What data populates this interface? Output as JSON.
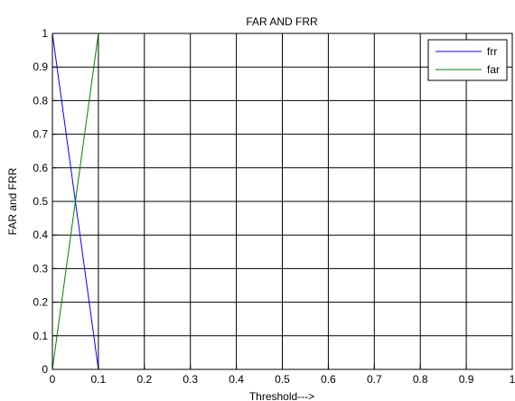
{
  "chart_data": {
    "type": "line",
    "title": "FAR AND FRR",
    "xlabel": "Threshold--->",
    "ylabel": "FAR and FRR",
    "xlim": [
      0,
      1
    ],
    "ylim": [
      0,
      1
    ],
    "grid": true,
    "legend_position": "top-right",
    "x_ticks": [
      "0",
      "0.1",
      "0.2",
      "0.3",
      "0.4",
      "0.5",
      "0.6",
      "0.7",
      "0.8",
      "0.9",
      "1"
    ],
    "y_ticks": [
      "0",
      "0.1",
      "0.2",
      "0.3",
      "0.4",
      "0.5",
      "0.6",
      "0.7",
      "0.8",
      "0.9",
      "1"
    ],
    "series": [
      {
        "name": "frr",
        "color": "#0000ff",
        "x": [
          0,
          0.1,
          1
        ],
        "y": [
          1,
          0,
          0
        ]
      },
      {
        "name": "far",
        "color": "#008000",
        "x": [
          0,
          0.1,
          1
        ],
        "y": [
          0,
          1,
          1
        ]
      }
    ]
  }
}
